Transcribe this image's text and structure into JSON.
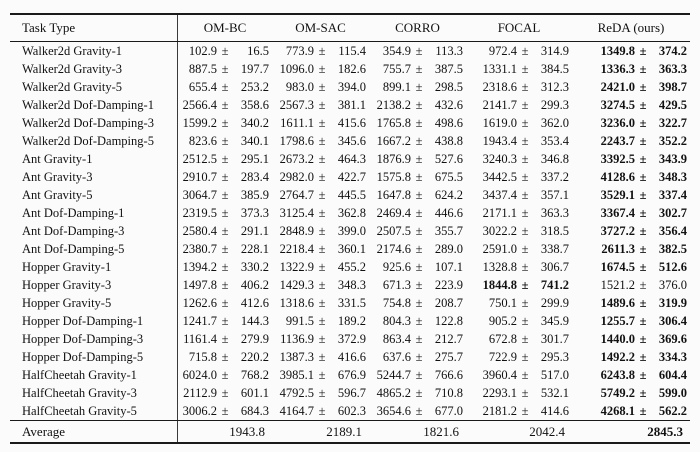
{
  "colors": {
    "background": "#fbfbfb",
    "text": "#111111",
    "rule": "#1a1a1a"
  },
  "table": {
    "columns": [
      "Task Type",
      "OM-BC",
      "OM-SAC",
      "CORRO",
      "FOCAL",
      "ReDA (ours)"
    ],
    "plus_minus": "±",
    "rows": [
      {
        "task": "Walker2d Gravity-1",
        "cells": [
          [
            "102.9",
            "16.5",
            0
          ],
          [
            "773.9",
            "115.4",
            0
          ],
          [
            "354.9",
            "113.3",
            0
          ],
          [
            "972.4",
            "314.9",
            0
          ],
          [
            "1349.8",
            "374.2",
            1
          ]
        ]
      },
      {
        "task": "Walker2d Gravity-3",
        "cells": [
          [
            "887.5",
            "197.7",
            0
          ],
          [
            "1096.0",
            "182.6",
            0
          ],
          [
            "755.7",
            "387.5",
            0
          ],
          [
            "1331.1",
            "384.5",
            0
          ],
          [
            "1336.3",
            "363.3",
            1
          ]
        ]
      },
      {
        "task": "Walker2d Gravity-5",
        "cells": [
          [
            "655.4",
            "253.2",
            0
          ],
          [
            "983.0",
            "394.0",
            0
          ],
          [
            "899.1",
            "298.5",
            0
          ],
          [
            "2318.6",
            "312.3",
            0
          ],
          [
            "2421.0",
            "398.7",
            1
          ]
        ]
      },
      {
        "task": "Walker2d Dof-Damping-1",
        "cells": [
          [
            "2566.4",
            "358.6",
            0
          ],
          [
            "2567.3",
            "381.1",
            0
          ],
          [
            "2138.2",
            "432.6",
            0
          ],
          [
            "2141.7",
            "299.3",
            0
          ],
          [
            "3274.5",
            "429.5",
            1
          ]
        ]
      },
      {
        "task": "Walker2d Dof-Damping-3",
        "cells": [
          [
            "1599.2",
            "340.2",
            0
          ],
          [
            "1611.1",
            "415.6",
            0
          ],
          [
            "1765.8",
            "498.6",
            0
          ],
          [
            "1619.0",
            "362.0",
            0
          ],
          [
            "3236.0",
            "322.7",
            1
          ]
        ]
      },
      {
        "task": "Walker2d Dof-Damping-5",
        "cells": [
          [
            "823.6",
            "340.1",
            0
          ],
          [
            "1798.6",
            "345.6",
            0
          ],
          [
            "1667.2",
            "438.8",
            0
          ],
          [
            "1943.4",
            "353.4",
            0
          ],
          [
            "2243.7",
            "352.2",
            1
          ]
        ]
      },
      {
        "task": "Ant Gravity-1",
        "cells": [
          [
            "2512.5",
            "295.1",
            0
          ],
          [
            "2673.2",
            "464.3",
            0
          ],
          [
            "1876.9",
            "527.6",
            0
          ],
          [
            "3240.3",
            "346.8",
            0
          ],
          [
            "3392.5",
            "343.9",
            1
          ]
        ]
      },
      {
        "task": "Ant Gravity-3",
        "cells": [
          [
            "2910.7",
            "283.4",
            0
          ],
          [
            "2982.0",
            "422.7",
            0
          ],
          [
            "1575.8",
            "675.5",
            0
          ],
          [
            "3442.5",
            "337.2",
            0
          ],
          [
            "4128.6",
            "348.3",
            1
          ]
        ]
      },
      {
        "task": "Ant Gravity-5",
        "cells": [
          [
            "3064.7",
            "385.9",
            0
          ],
          [
            "2764.7",
            "445.5",
            0
          ],
          [
            "1647.8",
            "624.2",
            0
          ],
          [
            "3437.4",
            "357.1",
            0
          ],
          [
            "3529.1",
            "337.4",
            1
          ]
        ]
      },
      {
        "task": "Ant Dof-Damping-1",
        "cells": [
          [
            "2319.5",
            "373.3",
            0
          ],
          [
            "3125.4",
            "362.8",
            0
          ],
          [
            "2469.4",
            "446.6",
            0
          ],
          [
            "2171.1",
            "363.3",
            0
          ],
          [
            "3367.4",
            "302.7",
            1
          ]
        ]
      },
      {
        "task": "Ant Dof-Damping-3",
        "cells": [
          [
            "2580.4",
            "291.1",
            0
          ],
          [
            "2848.9",
            "399.0",
            0
          ],
          [
            "2507.5",
            "355.7",
            0
          ],
          [
            "3022.2",
            "318.5",
            0
          ],
          [
            "3727.2",
            "356.4",
            1
          ]
        ]
      },
      {
        "task": "Ant Dof-Damping-5",
        "cells": [
          [
            "2380.7",
            "228.1",
            0
          ],
          [
            "2218.4",
            "360.1",
            0
          ],
          [
            "2174.6",
            "289.0",
            0
          ],
          [
            "2591.0",
            "338.7",
            0
          ],
          [
            "2611.3",
            "382.5",
            1
          ]
        ]
      },
      {
        "task": "Hopper Gravity-1",
        "cells": [
          [
            "1394.2",
            "330.2",
            0
          ],
          [
            "1322.9",
            "455.2",
            0
          ],
          [
            "925.6",
            "107.1",
            0
          ],
          [
            "1328.8",
            "306.7",
            0
          ],
          [
            "1674.5",
            "512.6",
            1
          ]
        ]
      },
      {
        "task": "Hopper Gravity-3",
        "cells": [
          [
            "1497.8",
            "406.2",
            0
          ],
          [
            "1429.3",
            "348.3",
            0
          ],
          [
            "671.3",
            "223.9",
            0
          ],
          [
            "1844.8",
            "741.2",
            1
          ],
          [
            "1521.2",
            "376.0",
            0
          ]
        ]
      },
      {
        "task": "Hopper Gravity-5",
        "cells": [
          [
            "1262.6",
            "412.6",
            0
          ],
          [
            "1318.6",
            "331.5",
            0
          ],
          [
            "754.8",
            "208.7",
            0
          ],
          [
            "750.1",
            "299.9",
            0
          ],
          [
            "1489.6",
            "319.9",
            1
          ]
        ]
      },
      {
        "task": "Hopper Dof-Damping-1",
        "cells": [
          [
            "1241.7",
            "144.3",
            0
          ],
          [
            "991.5",
            "189.2",
            0
          ],
          [
            "804.3",
            "122.8",
            0
          ],
          [
            "905.2",
            "345.9",
            0
          ],
          [
            "1255.7",
            "306.4",
            1
          ]
        ]
      },
      {
        "task": "Hopper Dof-Damping-3",
        "cells": [
          [
            "1161.4",
            "279.9",
            0
          ],
          [
            "1136.9",
            "372.9",
            0
          ],
          [
            "863.4",
            "212.7",
            0
          ],
          [
            "672.8",
            "301.7",
            0
          ],
          [
            "1440.0",
            "369.6",
            1
          ]
        ]
      },
      {
        "task": "Hopper Dof-Damping-5",
        "cells": [
          [
            "715.8",
            "220.2",
            0
          ],
          [
            "1387.3",
            "416.6",
            0
          ],
          [
            "637.6",
            "275.7",
            0
          ],
          [
            "722.9",
            "295.3",
            0
          ],
          [
            "1492.2",
            "334.3",
            1
          ]
        ]
      },
      {
        "task": "HalfCheetah Gravity-1",
        "cells": [
          [
            "6024.0",
            "768.2",
            0
          ],
          [
            "3985.1",
            "676.9",
            0
          ],
          [
            "5244.7",
            "766.6",
            0
          ],
          [
            "3960.4",
            "517.0",
            0
          ],
          [
            "6243.8",
            "604.4",
            1
          ]
        ]
      },
      {
        "task": "HalfCheetah Gravity-3",
        "cells": [
          [
            "2112.9",
            "601.1",
            0
          ],
          [
            "4792.5",
            "596.7",
            0
          ],
          [
            "4865.2",
            "710.8",
            0
          ],
          [
            "2293.1",
            "532.1",
            0
          ],
          [
            "5749.2",
            "599.0",
            1
          ]
        ]
      },
      {
        "task": "HalfCheetah Gravity-5",
        "cells": [
          [
            "3006.2",
            "684.3",
            0
          ],
          [
            "4164.7",
            "602.3",
            0
          ],
          [
            "3654.6",
            "677.0",
            0
          ],
          [
            "2181.2",
            "414.6",
            0
          ],
          [
            "4268.1",
            "562.2",
            1
          ]
        ]
      }
    ],
    "average": {
      "label": "Average",
      "values": [
        [
          "1943.8",
          0
        ],
        [
          "2189.1",
          0
        ],
        [
          "1821.6",
          0
        ],
        [
          "2042.4",
          0
        ],
        [
          "2845.3",
          1
        ]
      ]
    }
  }
}
